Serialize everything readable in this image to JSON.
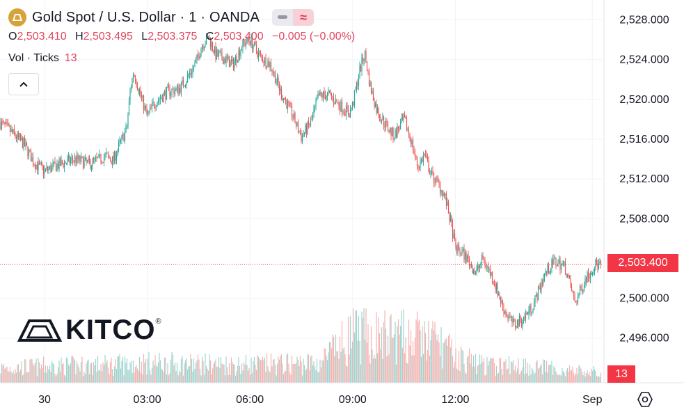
{
  "header": {
    "symbol_title": "Gold Spot / U.S. Dollar · 1 · OANDA",
    "ohlc": {
      "o_label": "O",
      "o": "2,503.410",
      "h_label": "H",
      "h": "2,503.495",
      "l_label": "L",
      "l": "2,503.375",
      "c_label": "C",
      "c": "2,503.400",
      "change": "−0.005 (−0.00%)"
    },
    "volume_label": "Vol · Ticks",
    "volume_value": "13"
  },
  "logo": {
    "text": "KITCO",
    "reg": "®"
  },
  "price_tag": "2,503.400",
  "volume_tag": "13",
  "colors": {
    "up": "#26a69a",
    "down": "#ef5350",
    "last_price": "#f23645",
    "grid": "#f0f3fa",
    "vol_up": "#9fd4cf",
    "vol_down": "#f5b2b0"
  },
  "chart_data": {
    "type": "candlestick",
    "title": "Gold Spot / U.S. Dollar · 1 · OANDA",
    "interval_minutes": 1,
    "y_ticks": [
      2496,
      2500,
      2508,
      2512,
      2516,
      2520,
      2524,
      2528
    ],
    "y_tick_labels": [
      "2,496.000",
      "2,500.000",
      "2,508.000",
      "2,512.000",
      "2,516.000",
      "2,520.000",
      "2,524.000",
      "2,528.000"
    ],
    "y_range": [
      2491.5,
      2530.0
    ],
    "x_tick_labels": [
      "30",
      "03:00",
      "06:00",
      "09:00",
      "12:00",
      "Sep"
    ],
    "x_tick_positions_hours": [
      0,
      3,
      6,
      9,
      12,
      16
    ],
    "x_range_hours": [
      -1.3,
      16.3
    ],
    "last_price": 2503.4,
    "last_volume": 13,
    "price_path": [
      [
        -1.3,
        2517.7
      ],
      [
        -1.0,
        2516.8
      ],
      [
        -0.6,
        2515.5
      ],
      [
        -0.3,
        2513.6
      ],
      [
        0.0,
        2512.8
      ],
      [
        0.4,
        2513.4
      ],
      [
        0.9,
        2514.0
      ],
      [
        1.3,
        2513.5
      ],
      [
        1.8,
        2514.3
      ],
      [
        2.0,
        2513.8
      ],
      [
        2.2,
        2515.5
      ],
      [
        2.4,
        2517.0
      ],
      [
        2.5,
        2520.8
      ],
      [
        2.6,
        2522.8
      ],
      [
        2.8,
        2520.5
      ],
      [
        3.0,
        2518.3
      ],
      [
        3.2,
        2519.6
      ],
      [
        3.6,
        2520.8
      ],
      [
        3.9,
        2521.0
      ],
      [
        4.1,
        2521.8
      ],
      [
        4.4,
        2523.5
      ],
      [
        4.6,
        2525.5
      ],
      [
        4.8,
        2526.2
      ],
      [
        5.0,
        2524.5
      ],
      [
        5.3,
        2524.0
      ],
      [
        5.5,
        2523.5
      ],
      [
        5.8,
        2525.6
      ],
      [
        6.0,
        2526.0
      ],
      [
        6.3,
        2524.3
      ],
      [
        6.6,
        2523.5
      ],
      [
        6.9,
        2520.7
      ],
      [
        7.2,
        2518.8
      ],
      [
        7.5,
        2516.2
      ],
      [
        7.8,
        2517.8
      ],
      [
        8.0,
        2520.3
      ],
      [
        8.3,
        2520.5
      ],
      [
        8.6,
        2519.5
      ],
      [
        8.9,
        2518.6
      ],
      [
        9.0,
        2519.4
      ],
      [
        9.2,
        2522.8
      ],
      [
        9.35,
        2524.7
      ],
      [
        9.5,
        2521.5
      ],
      [
        9.7,
        2519.0
      ],
      [
        9.9,
        2517.8
      ],
      [
        10.2,
        2516.3
      ],
      [
        10.5,
        2518.0
      ],
      [
        10.7,
        2516.0
      ],
      [
        10.9,
        2513.2
      ],
      [
        11.1,
        2514.4
      ],
      [
        11.3,
        2512.4
      ],
      [
        11.5,
        2511.5
      ],
      [
        11.7,
        2510.2
      ],
      [
        11.9,
        2507.0
      ],
      [
        12.0,
        2505.0
      ],
      [
        12.2,
        2504.6
      ],
      [
        12.4,
        2503.7
      ],
      [
        12.6,
        2502.5
      ],
      [
        12.8,
        2504.0
      ],
      [
        13.1,
        2502.0
      ],
      [
        13.4,
        2499.0
      ],
      [
        13.7,
        2497.3
      ],
      [
        14.0,
        2498.0
      ],
      [
        14.3,
        2499.5
      ],
      [
        14.6,
        2502.4
      ],
      [
        14.9,
        2503.7
      ],
      [
        15.2,
        2503.2
      ],
      [
        15.5,
        2499.5
      ],
      [
        15.8,
        2502.0
      ],
      [
        16.1,
        2503.4
      ]
    ],
    "volume_profile_ticks": [
      [
        -1.3,
        18
      ],
      [
        0.0,
        20
      ],
      [
        2.0,
        22
      ],
      [
        3.0,
        24
      ],
      [
        6.0,
        22
      ],
      [
        8.0,
        24
      ],
      [
        9.0,
        58
      ],
      [
        10.8,
        56
      ],
      [
        11.5,
        50
      ],
      [
        12.0,
        32
      ],
      [
        13.0,
        20
      ],
      [
        14.0,
        22
      ],
      [
        15.0,
        16
      ],
      [
        16.3,
        12
      ]
    ],
    "volume_axis_max_ticks": 140
  }
}
